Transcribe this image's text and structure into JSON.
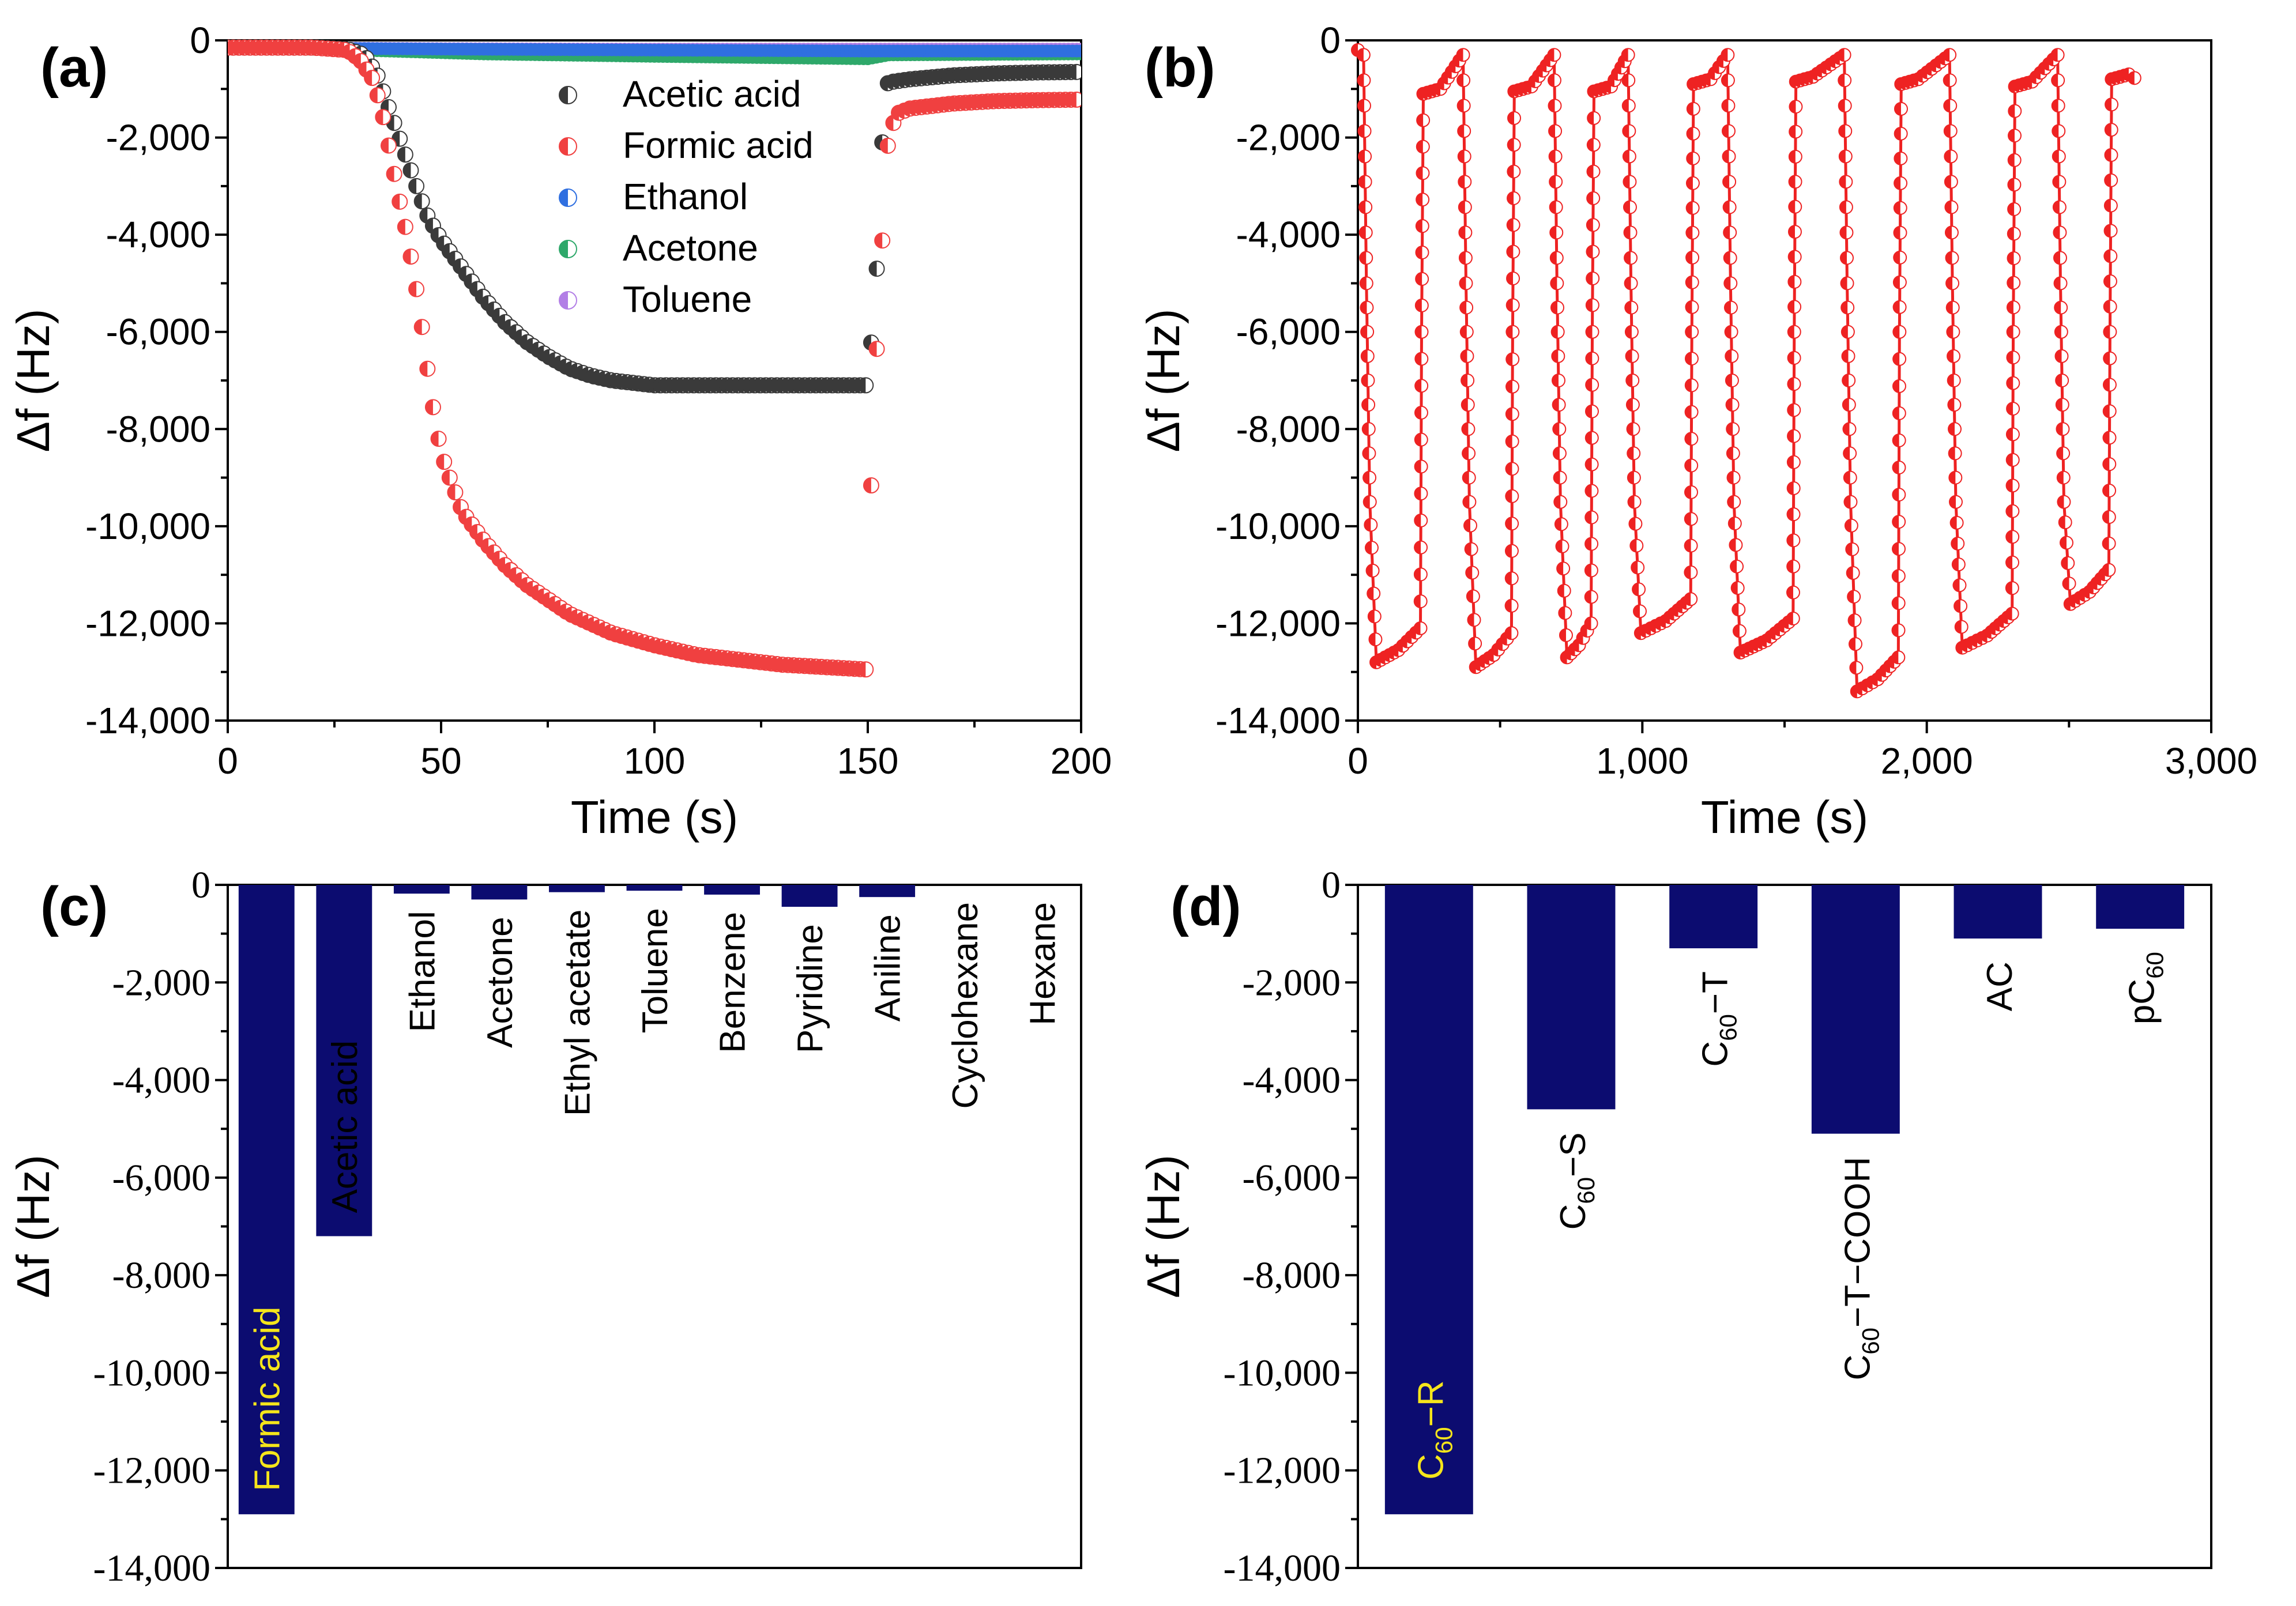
{
  "chart_data": [
    {
      "panel": "(a)",
      "type": "scatter",
      "xlabel": "Time (s)",
      "ylabel": "Δf (Hz)",
      "xlim": [
        0,
        200
      ],
      "ylim": [
        -14000,
        0
      ],
      "xticks": [
        "0",
        "50",
        "100",
        "150",
        "200"
      ],
      "yticks": [
        "0",
        "-2,000",
        "-4,000",
        "-6,000",
        "-8,000",
        "-10,000",
        "-12,000",
        "-14,000"
      ],
      "legend_position": "top-center",
      "series": [
        {
          "name": "Acetic acid",
          "color": "#3a3a3a",
          "points": [
            [
              0,
              -150
            ],
            [
              10,
              -150
            ],
            [
              20,
              -150
            ],
            [
              28,
              -180
            ],
            [
              32,
              -300
            ],
            [
              35,
              -700
            ],
            [
              37,
              -1200
            ],
            [
              39,
              -1700
            ],
            [
              41,
              -2200
            ],
            [
              43,
              -2700
            ],
            [
              45,
              -3200
            ],
            [
              47,
              -3650
            ],
            [
              50,
              -4100
            ],
            [
              55,
              -4700
            ],
            [
              60,
              -5300
            ],
            [
              65,
              -5800
            ],
            [
              70,
              -6200
            ],
            [
              75,
              -6500
            ],
            [
              80,
              -6750
            ],
            [
              85,
              -6900
            ],
            [
              90,
              -7000
            ],
            [
              95,
              -7050
            ],
            [
              100,
              -7100
            ],
            [
              110,
              -7100
            ],
            [
              120,
              -7100
            ],
            [
              130,
              -7100
            ],
            [
              140,
              -7100
            ],
            [
              150,
              -7100
            ],
            [
              151,
              -6000
            ],
            [
              152,
              -4900
            ],
            [
              153,
              -2900
            ],
            [
              154,
              -900
            ],
            [
              156,
              -850
            ],
            [
              160,
              -800
            ],
            [
              170,
              -720
            ],
            [
              180,
              -680
            ],
            [
              190,
              -660
            ],
            [
              200,
              -650
            ]
          ]
        },
        {
          "name": "Formic acid",
          "color": "#f04040",
          "points": [
            [
              0,
              -150
            ],
            [
              10,
              -150
            ],
            [
              20,
              -150
            ],
            [
              28,
              -200
            ],
            [
              31,
              -400
            ],
            [
              34,
              -800
            ],
            [
              36,
              -1400
            ],
            [
              38,
              -2300
            ],
            [
              40,
              -3200
            ],
            [
              42,
              -4000
            ],
            [
              44,
              -5000
            ],
            [
              45,
              -5600
            ],
            [
              46,
              -6200
            ],
            [
              47,
              -6900
            ],
            [
              48,
              -7500
            ],
            [
              49,
              -8000
            ],
            [
              50,
              -8500
            ],
            [
              52,
              -9000
            ],
            [
              55,
              -9700
            ],
            [
              60,
              -10300
            ],
            [
              65,
              -10800
            ],
            [
              70,
              -11200
            ],
            [
              75,
              -11500
            ],
            [
              80,
              -11800
            ],
            [
              90,
              -12200
            ],
            [
              100,
              -12450
            ],
            [
              110,
              -12650
            ],
            [
              120,
              -12750
            ],
            [
              130,
              -12850
            ],
            [
              140,
              -12900
            ],
            [
              150,
              -12950
            ],
            [
              150.5,
              -10000
            ],
            [
              151,
              -8600
            ],
            [
              152,
              -6500
            ],
            [
              153,
              -5000
            ],
            [
              154,
              -2800
            ],
            [
              155,
              -1900
            ],
            [
              157,
              -1500
            ],
            [
              160,
              -1400
            ],
            [
              170,
              -1300
            ],
            [
              180,
              -1250
            ],
            [
              190,
              -1230
            ],
            [
              200,
              -1220
            ]
          ]
        },
        {
          "name": "Ethanol",
          "color": "#2f6fe0",
          "points": [
            [
              0,
              -150
            ],
            [
              50,
              -180
            ],
            [
              100,
              -200
            ],
            [
              150,
              -220
            ],
            [
              200,
              -220
            ]
          ]
        },
        {
          "name": "Acetone",
          "color": "#2ea86a",
          "points": [
            [
              0,
              -150
            ],
            [
              30,
              -200
            ],
            [
              60,
              -280
            ],
            [
              100,
              -330
            ],
            [
              150,
              -380
            ],
            [
              155,
              -300
            ],
            [
              200,
              -280
            ]
          ]
        },
        {
          "name": "Toluene",
          "color": "#b27ee6",
          "points": [
            [
              0,
              -150
            ],
            [
              50,
              -170
            ],
            [
              100,
              -180
            ],
            [
              150,
              -180
            ],
            [
              200,
              -180
            ]
          ]
        }
      ]
    },
    {
      "panel": "(b)",
      "type": "line",
      "xlabel": "Time (s)",
      "ylabel": "Δf (Hz)",
      "xlim": [
        0,
        3000
      ],
      "ylim": [
        -14000,
        0
      ],
      "xticks": [
        "0",
        "1,000",
        "2,000",
        "3,000"
      ],
      "yticks": [
        "0",
        "-2,000",
        "-4,000",
        "-6,000",
        "-8,000",
        "-10,000",
        "-12,000",
        "-14,000"
      ],
      "series": [
        {
          "name": "",
          "color": "#ee2222",
          "cycles": [
            {
              "start": 20,
              "end": 220,
              "min": -12800,
              "recover": -1100
            },
            {
              "start": 370,
              "end": 540,
              "min": -12900,
              "recover": -1050
            },
            {
              "start": 690,
              "end": 820,
              "min": -12700,
              "recover": -1050
            },
            {
              "start": 950,
              "end": 1170,
              "min": -12200,
              "recover": -900
            },
            {
              "start": 1300,
              "end": 1530,
              "min": -12600,
              "recover": -850
            },
            {
              "start": 1710,
              "end": 1900,
              "min": -13400,
              "recover": -900
            },
            {
              "start": 2080,
              "end": 2300,
              "min": -12500,
              "recover": -950
            },
            {
              "start": 2460,
              "end": 2640,
              "min": -11600,
              "recover": -800
            }
          ],
          "final_x": 2750,
          "final_y": -850
        }
      ]
    },
    {
      "panel": "(c)",
      "type": "bar",
      "ylabel": "Δf (Hz)",
      "ylim": [
        -14000,
        0
      ],
      "yticks": [
        "0",
        "-2,000",
        "-4,000",
        "-6,000",
        "-8,000",
        "-10,000",
        "-12,000",
        "-14,000"
      ],
      "bar_color": "#0c0c70",
      "highlight_label_color": "#f5e51b",
      "categories": [
        "Formic acid",
        "Acetic acid",
        "Ethanol",
        "Acetone",
        "Ethyl acetate",
        "Toluene",
        "Benzene",
        "Pyridine",
        "Aniline",
        "Cyclohexane",
        "Hexane"
      ],
      "values": [
        -12900,
        -7200,
        -180,
        -300,
        -150,
        -120,
        -200,
        -450,
        -250,
        0,
        0
      ]
    },
    {
      "panel": "(d)",
      "type": "bar",
      "ylabel": "Δf (Hz)",
      "ylim": [
        -14000,
        0
      ],
      "yticks": [
        "0",
        "-2,000",
        "-4,000",
        "-6,000",
        "-8,000",
        "-10,000",
        "-12,000",
        "-14,000"
      ],
      "bar_color": "#0c0c70",
      "highlight_label_color": "#f5e51b",
      "categories": [
        {
          "base": "C",
          "sub": "60",
          "rest": "−R"
        },
        {
          "base": "C",
          "sub": "60",
          "rest": "−S"
        },
        {
          "base": "C",
          "sub": "60",
          "rest": "−T"
        },
        {
          "base": "C",
          "sub": "60",
          "rest": "−T−COOH"
        },
        {
          "base": "AC",
          "sub": "",
          "rest": ""
        },
        {
          "base": "pC",
          "sub": "60",
          "rest": ""
        }
      ],
      "values": [
        -12900,
        -4600,
        -1300,
        -5100,
        -1100,
        -900
      ]
    }
  ]
}
